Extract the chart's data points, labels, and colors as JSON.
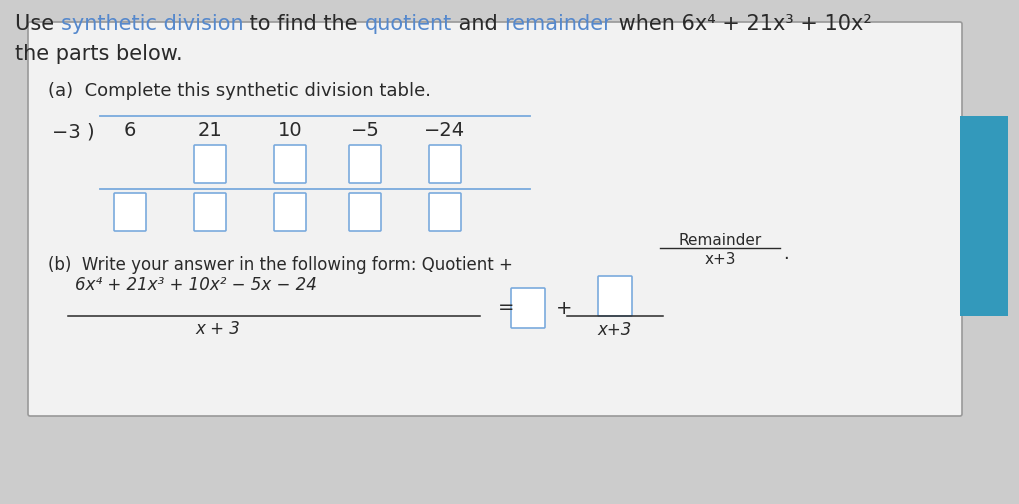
{
  "bg_color": "#cccccc",
  "panel_bg": "#f2f2f2",
  "panel_border": "#999999",
  "blue_bar_color": "#3399bb",
  "text_color": "#2a2a2a",
  "link_color": "#5588cc",
  "box_stroke": "#7aaadd",
  "line_color": "#7aaadd",
  "title_fontsize": 15,
  "body_fontsize": 13,
  "coeff_fontsize": 14,
  "small_fontsize": 12,
  "title_pieces": [
    [
      "Use ",
      "#2a2a2a",
      false
    ],
    [
      "synthetic division",
      "#5588cc",
      true
    ],
    [
      " to find the ",
      "#2a2a2a",
      false
    ],
    [
      "quotient",
      "#5588cc",
      true
    ],
    [
      " and ",
      "#2a2a2a",
      false
    ],
    [
      "remainder",
      "#5588cc",
      true
    ],
    [
      " when 6x⁴ + 21x³ + 10x²",
      "#2a2a2a",
      false
    ]
  ],
  "title_line2": "the parts below.",
  "part_a": "(a)  Complete this synthetic division table.",
  "divisor_text": "−3 )",
  "coefficients": [
    "6",
    "21",
    "10",
    "−5",
    "−24"
  ],
  "part_b_text": "(b)  Write your answer in the following form: Quotient +",
  "remainder_text": "Remainder",
  "x3_text": "x+3",
  "frac_num": "6x⁴ + 21x³ + 10x² − 5x − 24",
  "frac_den": "x + 3",
  "equals": "=",
  "plus": "+"
}
